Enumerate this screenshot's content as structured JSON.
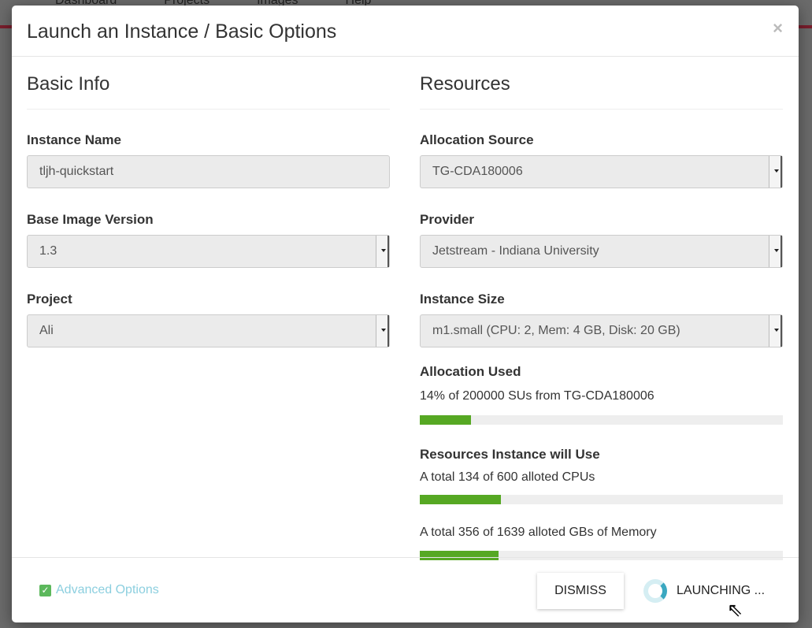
{
  "background": {
    "nav": [
      "Dashboard",
      "Projects",
      "Images",
      "Help"
    ]
  },
  "modal": {
    "title": "Launch an Instance / Basic Options",
    "close": "×",
    "basic_info": {
      "heading": "Basic Info",
      "instance_name_label": "Instance Name",
      "instance_name_value": "tljh-quickstart",
      "base_image_label": "Base Image Version",
      "base_image_value": "1.3",
      "project_label": "Project",
      "project_value": "Ali"
    },
    "resources": {
      "heading": "Resources",
      "allocation_source_label": "Allocation Source",
      "allocation_source_value": "TG-CDA180006",
      "provider_label": "Provider",
      "provider_value": "Jetstream - Indiana University",
      "instance_size_label": "Instance Size",
      "instance_size_value": "m1.small (CPU: 2, Mem: 4 GB, Disk: 20 GB)",
      "allocation_used_label": "Allocation Used",
      "allocation_used_text": "14% of 200000 SUs from TG-CDA180006",
      "allocation_used_percent": 14,
      "resources_label": "Resources Instance will Use",
      "cpu_text": "A total 134 of 600 alloted CPUs",
      "cpu_percent": 22.3,
      "memory_text": "A total 356 of 1639 alloted GBs of Memory",
      "memory_percent": 21.7,
      "bar_color": "#56a823"
    },
    "footer": {
      "advanced": "Advanced Options",
      "dismiss": "DISMISS",
      "launching": "LAUNCHING ..."
    }
  }
}
